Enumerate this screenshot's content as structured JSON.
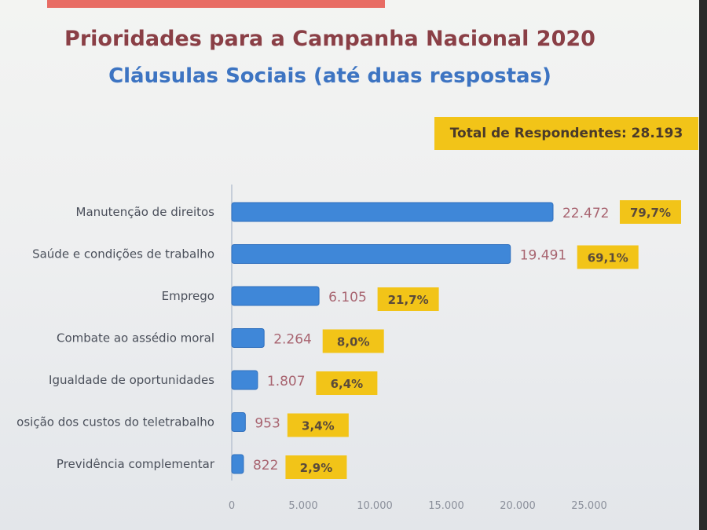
{
  "title": "Prioridades para a Campanha Nacional 2020",
  "subtitle": "Cláusulas Sociais (até duas respostas)",
  "total_label": "Total de Respondentes: 28.193",
  "colors": {
    "bar": "#3f87d8",
    "highlight": "#f2c418",
    "title": "#8a3f46",
    "subtitle": "#3d74c2"
  },
  "chart_data": {
    "type": "bar",
    "orientation": "horizontal",
    "categories": [
      "Manutenção de direitos",
      "Saúde e condições de trabalho",
      "Emprego",
      "Combate ao assédio moral",
      "Igualdade de oportunidades",
      "osição dos custos do teletrabalho",
      "Previdência complementar"
    ],
    "values": [
      22472,
      19491,
      6105,
      2264,
      1807,
      953,
      822
    ],
    "value_labels": [
      "22.472",
      "19.491",
      "6.105",
      "2.264",
      "1.807",
      "953",
      "822"
    ],
    "percent_labels": [
      "79,7%",
      "69,1%",
      "21,7%",
      "8,0%",
      "6,4%",
      "3,4%",
      "2,9%"
    ],
    "xlim": [
      0,
      25000
    ],
    "xticks": [
      0,
      5000,
      10000,
      15000,
      20000,
      25000
    ],
    "xtick_labels": [
      "0",
      "5.000",
      "10.000",
      "15.000",
      "20.000",
      "25.000"
    ],
    "grid": false
  }
}
